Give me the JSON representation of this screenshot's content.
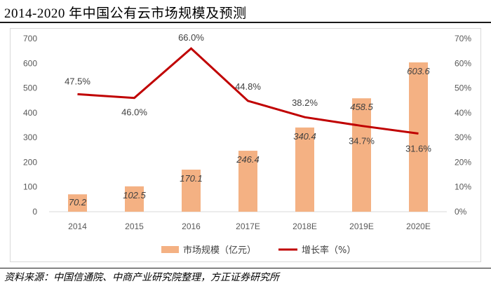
{
  "title": "2014-2020 年中国公有云市场规模及预测",
  "source": "资料来源：中国信通院、中商产业研究院整理，方正证券研究所",
  "chart_data": {
    "type": "bar+line",
    "categories": [
      "2014",
      "2015",
      "2016",
      "2017E",
      "2018E",
      "2019E",
      "2020E"
    ],
    "series": [
      {
        "name": "市场规模（亿元）",
        "type": "bar",
        "axis": "left",
        "color": "#F4B183",
        "values": [
          70.2,
          102.5,
          170.1,
          246.4,
          340.4,
          458.5,
          603.6
        ],
        "labels": [
          "70.2",
          "102.5",
          "170.1",
          "246.4",
          "340.4",
          "458.5",
          "603.6"
        ]
      },
      {
        "name": "增长率（%）",
        "type": "line",
        "axis": "right",
        "color": "#C00000",
        "values": [
          47.5,
          46.0,
          66.0,
          44.8,
          38.2,
          34.7,
          31.6
        ],
        "labels": [
          "47.5%",
          "46.0%",
          "66.0%",
          "44.8%",
          "38.2%",
          "34.7%",
          "31.6%"
        ]
      }
    ],
    "y_left": {
      "range": [
        0,
        700
      ],
      "ticks": [
        0,
        100,
        200,
        300,
        400,
        500,
        600,
        700
      ],
      "tick_labels": [
        "0",
        "100",
        "200",
        "300",
        "400",
        "500",
        "600",
        "700"
      ]
    },
    "y_right": {
      "range": [
        0,
        70
      ],
      "ticks": [
        0,
        10,
        20,
        30,
        40,
        50,
        60,
        70
      ],
      "tick_labels": [
        "0%",
        "10%",
        "20%",
        "30%",
        "40%",
        "50%",
        "60%",
        "70%"
      ]
    },
    "legend": [
      "市场规模（亿元）",
      "增长率（%）"
    ],
    "legend_position": "bottom",
    "grid": false
  }
}
